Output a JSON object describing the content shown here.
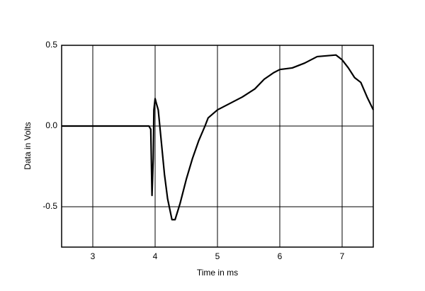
{
  "chart_data": {
    "type": "line",
    "x_label": "Time in ms",
    "y_label": "Data in Volts",
    "x": [
      2.5,
      3.9,
      3.93,
      3.95,
      3.97,
      3.98,
      4.0,
      4.02,
      4.05,
      4.1,
      4.15,
      4.2,
      4.27,
      4.32,
      4.4,
      4.5,
      4.6,
      4.7,
      4.8,
      4.85,
      5.0,
      5.2,
      5.4,
      5.6,
      5.75,
      5.9,
      6.0,
      6.2,
      6.4,
      6.6,
      6.9,
      7.0,
      7.1,
      7.2,
      7.3,
      7.4,
      7.5
    ],
    "series": [
      {
        "color": "#000000",
        "values": [
          0,
          0,
          -0.02,
          -0.43,
          -0.2,
          0.1,
          0.17,
          0.14,
          0.1,
          -0.1,
          -0.3,
          -0.45,
          -0.58,
          -0.58,
          -0.48,
          -0.33,
          -0.2,
          -0.09,
          0.0,
          0.05,
          0.1,
          0.14,
          0.18,
          0.23,
          0.29,
          0.33,
          0.35,
          0.36,
          0.39,
          0.43,
          0.44,
          0.41,
          0.36,
          0.3,
          0.27,
          0.18,
          0.1
        ]
      }
    ],
    "xlim": [
      2.5,
      7.5
    ],
    "ylim": [
      -0.75,
      0.5
    ],
    "xticks": [
      3,
      4,
      5,
      6,
      7
    ],
    "yticks": [
      -0.5,
      {
        "value": 0,
        "label": "0.0"
      },
      0.5
    ],
    "grid": true
  }
}
